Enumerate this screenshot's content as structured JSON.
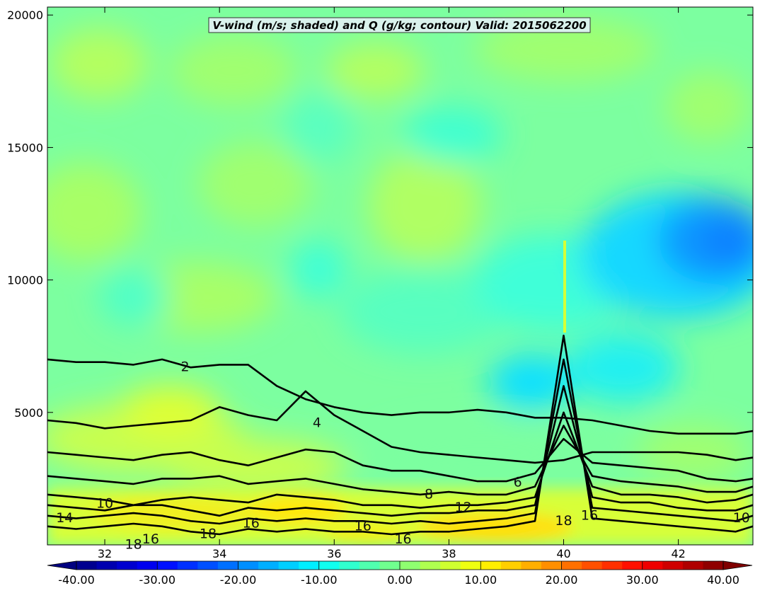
{
  "chart_data": {
    "type": "contour",
    "title": "V-wind (m/s; shaded) and Q (g/kg; contour) Valid: 2015062200",
    "x_ticks": [
      32,
      34,
      36,
      38,
      40,
      42
    ],
    "y_ticks": [
      5000,
      10000,
      15000,
      20000
    ],
    "xlim": [
      31,
      43.3
    ],
    "ylim": [
      0,
      20300
    ],
    "colorbar": {
      "label_values": [
        -40,
        -30,
        -20,
        -10,
        0,
        10,
        20,
        30,
        40
      ],
      "labels": [
        "-40.00",
        "-30.00",
        "-20.00",
        "-10.00",
        "0.00",
        "10.00",
        "20.00",
        "30.00",
        "40.00"
      ],
      "min": -40,
      "max": 40,
      "step": 2.5,
      "extend": "both",
      "colormap": "jet"
    },
    "contour_labels": [
      {
        "text": "2",
        "x": 33.4,
        "y": 6700
      },
      {
        "text": "4",
        "x": 35.7,
        "y": 4600
      },
      {
        "text": "6",
        "x": 39.2,
        "y": 2350
      },
      {
        "text": "8",
        "x": 37.65,
        "y": 1900
      },
      {
        "text": "10",
        "x": 32.0,
        "y": 1550
      },
      {
        "text": "10",
        "x": 43.1,
        "y": 1000
      },
      {
        "text": "12",
        "x": 38.25,
        "y": 1400
      },
      {
        "text": "14",
        "x": 31.3,
        "y": 1000
      },
      {
        "text": "16",
        "x": 32.8,
        "y": 200
      },
      {
        "text": "16",
        "x": 34.55,
        "y": 800
      },
      {
        "text": "16",
        "x": 36.5,
        "y": 700
      },
      {
        "text": "16",
        "x": 37.2,
        "y": 200
      },
      {
        "text": "16",
        "x": 40.45,
        "y": 1100
      },
      {
        "text": "18",
        "x": 33.8,
        "y": 400
      },
      {
        "text": "18",
        "x": 32.5,
        "y": 0
      },
      {
        "text": "18",
        "x": 40.0,
        "y": 900
      }
    ],
    "contours": [
      {
        "level": 2,
        "points": [
          [
            31,
            7000
          ],
          [
            31.5,
            6900
          ],
          [
            32,
            6900
          ],
          [
            32.5,
            6800
          ],
          [
            33,
            7000
          ],
          [
            33.5,
            6700
          ],
          [
            34,
            6800
          ],
          [
            34.5,
            6800
          ],
          [
            35,
            6000
          ],
          [
            35.5,
            5500
          ],
          [
            36,
            5200
          ],
          [
            36.5,
            5000
          ],
          [
            37,
            4900
          ],
          [
            37.5,
            5000
          ],
          [
            38,
            5000
          ],
          [
            38.5,
            5100
          ],
          [
            39,
            5000
          ],
          [
            39.5,
            4800
          ],
          [
            40,
            4800
          ],
          [
            40.5,
            4700
          ],
          [
            41,
            4500
          ],
          [
            41.5,
            4300
          ],
          [
            42,
            4200
          ],
          [
            42.5,
            4200
          ],
          [
            43,
            4200
          ],
          [
            43.3,
            4300
          ]
        ]
      },
      {
        "level": 4,
        "points": [
          [
            31,
            4700
          ],
          [
            31.5,
            4600
          ],
          [
            32,
            4400
          ],
          [
            32.5,
            4500
          ],
          [
            33,
            4600
          ],
          [
            33.5,
            4700
          ],
          [
            34,
            5200
          ],
          [
            34.5,
            4900
          ],
          [
            35,
            4700
          ],
          [
            35.5,
            5800
          ],
          [
            36,
            4900
          ],
          [
            36.5,
            4300
          ],
          [
            37,
            3700
          ],
          [
            37.5,
            3500
          ],
          [
            38,
            3400
          ],
          [
            38.5,
            3300
          ],
          [
            39,
            3200
          ],
          [
            39.5,
            3100
          ],
          [
            40,
            3200
          ],
          [
            40.5,
            3500
          ],
          [
            41,
            3500
          ],
          [
            41.5,
            3500
          ],
          [
            42,
            3500
          ],
          [
            42.5,
            3400
          ],
          [
            43,
            3200
          ],
          [
            43.3,
            3300
          ]
        ]
      },
      {
        "level": 6,
        "points": [
          [
            31,
            3500
          ],
          [
            31.5,
            3400
          ],
          [
            32,
            3300
          ],
          [
            32.5,
            3200
          ],
          [
            33,
            3400
          ],
          [
            33.5,
            3500
          ],
          [
            34,
            3200
          ],
          [
            34.5,
            3000
          ],
          [
            35,
            3300
          ],
          [
            35.5,
            3600
          ],
          [
            36,
            3500
          ],
          [
            36.5,
            3000
          ],
          [
            37,
            2800
          ],
          [
            37.5,
            2800
          ],
          [
            38,
            2600
          ],
          [
            38.5,
            2400
          ],
          [
            39,
            2400
          ],
          [
            39.5,
            2700
          ],
          [
            40,
            4000
          ],
          [
            40.5,
            3100
          ],
          [
            41,
            3000
          ],
          [
            41.5,
            2900
          ],
          [
            42,
            2800
          ],
          [
            42.5,
            2500
          ],
          [
            43,
            2400
          ],
          [
            43.3,
            2500
          ]
        ]
      },
      {
        "level": 8,
        "points": [
          [
            31,
            2600
          ],
          [
            31.5,
            2500
          ],
          [
            32,
            2400
          ],
          [
            32.5,
            2300
          ],
          [
            33,
            2500
          ],
          [
            33.5,
            2500
          ],
          [
            34,
            2600
          ],
          [
            34.5,
            2300
          ],
          [
            35,
            2400
          ],
          [
            35.5,
            2500
          ],
          [
            36,
            2300
          ],
          [
            36.5,
            2100
          ],
          [
            37,
            2000
          ],
          [
            37.5,
            1900
          ],
          [
            38,
            2000
          ],
          [
            38.5,
            1900
          ],
          [
            39,
            1900
          ],
          [
            39.5,
            2200
          ],
          [
            40,
            4500
          ],
          [
            40.5,
            2600
          ],
          [
            41,
            2400
          ],
          [
            41.5,
            2300
          ],
          [
            42,
            2200
          ],
          [
            42.5,
            2000
          ],
          [
            43,
            2000
          ],
          [
            43.3,
            2200
          ]
        ]
      },
      {
        "level": 10,
        "points": [
          [
            31,
            1900
          ],
          [
            31.5,
            1800
          ],
          [
            32,
            1700
          ],
          [
            32.5,
            1500
          ],
          [
            33,
            1700
          ],
          [
            33.5,
            1800
          ],
          [
            34,
            1700
          ],
          [
            34.5,
            1600
          ],
          [
            35,
            1900
          ],
          [
            35.5,
            1800
          ],
          [
            36,
            1700
          ],
          [
            36.5,
            1500
          ],
          [
            37,
            1500
          ],
          [
            37.5,
            1400
          ],
          [
            38,
            1500
          ],
          [
            38.5,
            1500
          ],
          [
            39,
            1600
          ],
          [
            39.5,
            1800
          ],
          [
            40,
            5000
          ],
          [
            40.5,
            2200
          ],
          [
            41,
            1900
          ],
          [
            41.5,
            1900
          ],
          [
            42,
            1800
          ],
          [
            42.5,
            1600
          ],
          [
            43,
            1700
          ],
          [
            43.3,
            1900
          ]
        ]
      },
      {
        "level": 12,
        "points": [
          [
            31,
            1500
          ],
          [
            31.5,
            1400
          ],
          [
            32,
            1300
          ],
          [
            32.5,
            1500
          ],
          [
            33,
            1500
          ],
          [
            33.5,
            1300
          ],
          [
            34,
            1100
          ],
          [
            34.5,
            1400
          ],
          [
            35,
            1300
          ],
          [
            35.5,
            1400
          ],
          [
            36,
            1300
          ],
          [
            36.5,
            1200
          ],
          [
            37,
            1100
          ],
          [
            37.5,
            1200
          ],
          [
            38,
            1200
          ],
          [
            38.5,
            1300
          ],
          [
            39,
            1300
          ],
          [
            39.5,
            1500
          ],
          [
            40,
            6000
          ],
          [
            40.5,
            1800
          ],
          [
            41,
            1600
          ],
          [
            41.5,
            1600
          ],
          [
            42,
            1400
          ],
          [
            42.5,
            1300
          ],
          [
            43,
            1300
          ],
          [
            43.3,
            1500
          ]
        ]
      },
      {
        "level": 14,
        "points": [
          [
            31,
            1100
          ],
          [
            31.5,
            1000
          ],
          [
            32,
            1100
          ],
          [
            32.5,
            1200
          ],
          [
            33,
            1100
          ],
          [
            33.5,
            900
          ],
          [
            34,
            800
          ],
          [
            34.5,
            1000
          ],
          [
            35,
            900
          ],
          [
            35.5,
            1000
          ],
          [
            36,
            900
          ],
          [
            36.5,
            900
          ],
          [
            37,
            800
          ],
          [
            37.5,
            900
          ],
          [
            38,
            800
          ],
          [
            38.5,
            900
          ],
          [
            39,
            1000
          ],
          [
            39.5,
            1200
          ],
          [
            40,
            7000
          ],
          [
            40.5,
            1400
          ],
          [
            41,
            1300
          ],
          [
            41.5,
            1200
          ],
          [
            42,
            1100
          ],
          [
            42.5,
            1000
          ],
          [
            43,
            900
          ],
          [
            43.3,
            1100
          ]
        ]
      },
      {
        "level": 16,
        "points": [
          [
            31,
            700
          ],
          [
            31.5,
            600
          ],
          [
            32,
            700
          ],
          [
            32.5,
            800
          ],
          [
            33,
            700
          ],
          [
            33.5,
            500
          ],
          [
            34,
            400
          ],
          [
            34.5,
            600
          ],
          [
            35,
            500
          ],
          [
            35.5,
            600
          ],
          [
            36,
            500
          ],
          [
            36.5,
            500
          ],
          [
            37,
            400
          ],
          [
            37.5,
            500
          ],
          [
            38,
            500
          ],
          [
            38.5,
            600
          ],
          [
            39,
            700
          ],
          [
            39.5,
            900
          ],
          [
            40,
            7900
          ],
          [
            40.5,
            1000
          ],
          [
            41,
            900
          ],
          [
            41.5,
            800
          ],
          [
            42,
            700
          ],
          [
            42.5,
            600
          ],
          [
            43,
            500
          ],
          [
            43.3,
            700
          ]
        ]
      }
    ]
  }
}
